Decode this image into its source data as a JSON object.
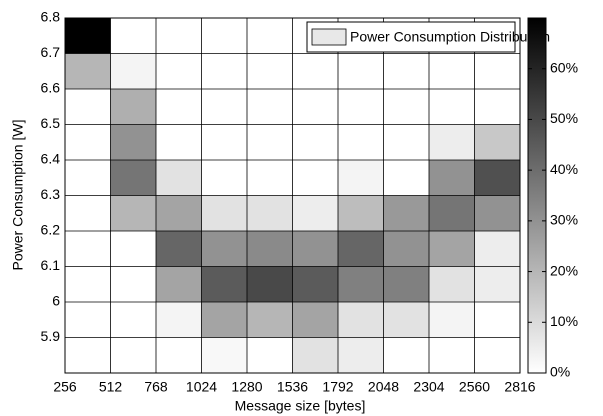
{
  "chart_data": {
    "type": "heatmap",
    "x_label": "Message size [bytes]",
    "y_label": "Power Consumption [W]",
    "xlim": [
      256,
      2816
    ],
    "xticks": [
      256,
      512,
      768,
      1024,
      1280,
      1536,
      1792,
      2048,
      2304,
      2560,
      2816
    ],
    "ylim": [
      5.8,
      6.8
    ],
    "yticks": [
      5.9,
      6,
      6.1,
      6.2,
      6.3,
      6.4,
      6.5,
      6.6,
      6.7,
      6.8
    ],
    "clim": [
      0,
      70
    ],
    "cticks": [
      {
        "value": 0,
        "label": "0%"
      },
      {
        "value": 10,
        "label": "10%"
      },
      {
        "value": 20,
        "label": "20%"
      },
      {
        "value": 30,
        "label": "30%"
      },
      {
        "value": 40,
        "label": "40%"
      },
      {
        "value": 50,
        "label": "50%"
      },
      {
        "value": 60,
        "label": "60%"
      }
    ],
    "colormap": [
      "#ffffff",
      "#000000"
    ],
    "legend": "upper right",
    "series": [
      {
        "name": "Power Consumption Distribution",
        "color": "#e8e8e8",
        "values": [
          [
            0,
            0,
            0,
            2,
            0,
            8,
            5,
            0,
            0,
            0
          ],
          [
            0,
            0,
            3,
            25,
            20,
            25,
            8,
            8,
            3,
            0
          ],
          [
            0,
            0,
            25,
            45,
            50,
            45,
            35,
            35,
            8,
            5
          ],
          [
            0,
            0,
            42,
            30,
            32,
            30,
            42,
            30,
            25,
            5
          ],
          [
            0,
            20,
            25,
            8,
            8,
            5,
            18,
            28,
            38,
            30
          ],
          [
            0,
            38,
            8,
            0,
            0,
            0,
            3,
            0,
            30,
            48
          ],
          [
            0,
            30,
            0,
            0,
            0,
            0,
            0,
            0,
            5,
            15
          ],
          [
            0,
            22,
            0,
            0,
            0,
            0,
            0,
            0,
            0,
            0
          ],
          [
            20,
            3,
            0,
            0,
            0,
            0,
            0,
            0,
            0,
            0
          ],
          [
            70,
            0,
            0,
            0,
            0,
            0,
            0,
            0,
            0,
            0
          ]
        ]
      }
    ]
  }
}
